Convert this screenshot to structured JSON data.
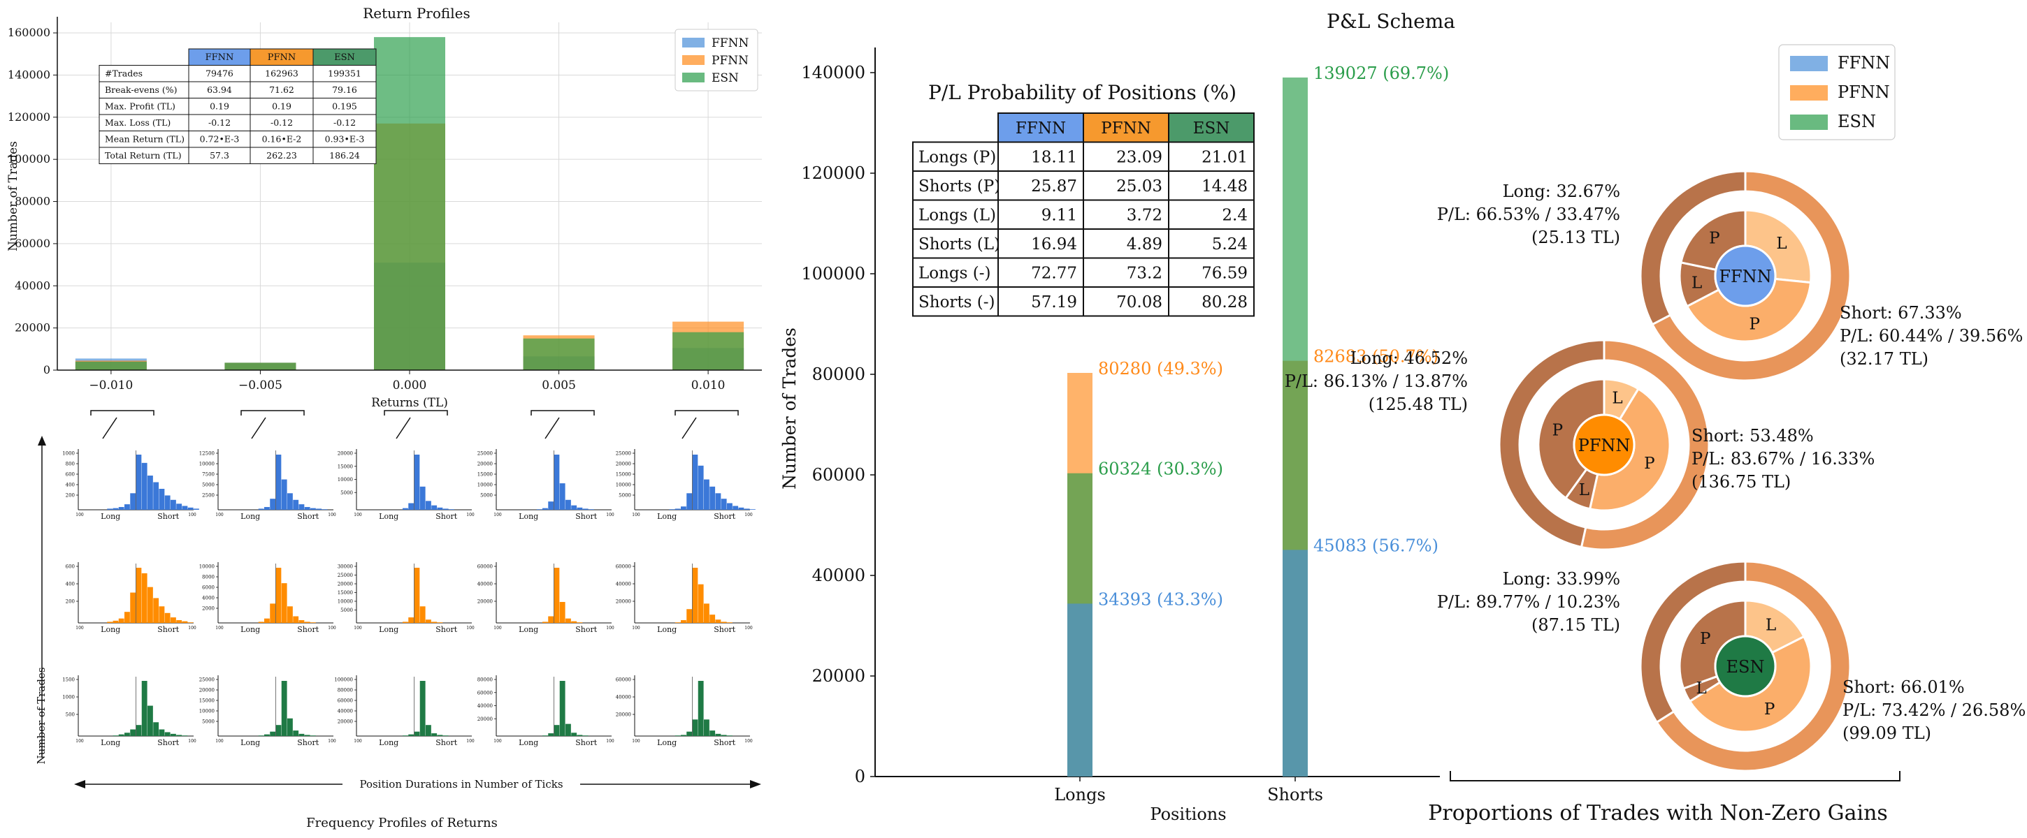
{
  "colors": {
    "ffnn": "#4a8fd9",
    "pfnn": "#ff8a1a",
    "esn": "#2a9d4a",
    "ffnn_cell": "#6d9eeb",
    "pfnn_cell": "#f6992e",
    "esn_cell": "#4c9a6a",
    "ffnn_dark": "#3b78d8",
    "pfnn_dark": "#ff8c00",
    "esn_dark": "#1f7a45",
    "long_pie": "#b8734a",
    "short_pie": "#e8955a",
    "inner_L": "#fdc48a",
    "inner_P": "#fbae6a"
  },
  "left": {
    "title": "Return Profiles",
    "ylabel": "Number of Trades",
    "xlabel": "Returns (TL)",
    "legend": [
      "FFNN",
      "PFNN",
      "ESN"
    ],
    "stats_table": {
      "headers": [
        "FFNN",
        "PFNN",
        "ESN"
      ],
      "rows": [
        {
          "label": "#Trades",
          "values": [
            "79476",
            "162963",
            "199351"
          ]
        },
        {
          "label": "Break-evens (%)",
          "values": [
            "63.94",
            "71.62",
            "79.16"
          ]
        },
        {
          "label": "Max. Profit (TL)",
          "values": [
            "0.19",
            "0.19",
            "0.195"
          ]
        },
        {
          "label": "Max. Loss (TL)",
          "values": [
            "-0.12",
            "-0.12",
            "-0.12"
          ]
        },
        {
          "label": "Mean Return (TL)",
          "values": [
            "0.72•E-3",
            "0.16•E-2",
            "0.93•E-3"
          ]
        },
        {
          "label": "Total Return (TL)",
          "values": [
            "57.3",
            "262.23",
            "186.24"
          ]
        }
      ]
    },
    "freq_title": "Frequency Profiles of Returns",
    "freq_ylabel": "Number of Trades",
    "freq_xlabel": "Position Durations in Number of Ticks",
    "small_long": "Long",
    "small_short": "Short",
    "small_tick": "100",
    "small_yticks": [
      [
        "1000",
        "800",
        "600",
        "400",
        "200"
      ],
      [
        "12500",
        "10000",
        "7500",
        "5000",
        "2500"
      ],
      [
        "20000",
        "15000",
        "10000",
        "5000"
      ],
      [
        "25000",
        "20000",
        "15000",
        "10000",
        "5000"
      ],
      [
        "25000",
        "20000",
        "15000",
        "10000",
        "5000"
      ],
      [
        "600",
        "400",
        "200"
      ],
      [
        "10000",
        "8000",
        "6000",
        "4000",
        "2000"
      ],
      [
        "30000",
        "25000",
        "20000",
        "15000",
        "10000",
        "5000"
      ],
      [
        "60000",
        "40000",
        "20000"
      ],
      [
        "60000",
        "40000",
        "20000"
      ],
      [
        "1500",
        "1000",
        "500"
      ],
      [
        "25000",
        "20000",
        "15000",
        "10000",
        "5000"
      ],
      [
        "100000",
        "80000",
        "60000",
        "40000",
        "20000"
      ],
      [
        "80000",
        "60000",
        "40000",
        "20000"
      ],
      [
        "60000",
        "40000",
        "20000"
      ]
    ]
  },
  "right": {
    "title": "P&L Schema",
    "ylabel": "Number of Trades",
    "xlabel": "Positions",
    "legend": [
      "FFNN",
      "PFNN",
      "ESN"
    ],
    "table_title": "P/L Probability of Positions (%)",
    "table_headers": [
      "FFNN",
      "PFNN",
      "ESN"
    ],
    "table_rows": [
      {
        "label": "Longs (P)",
        "values": [
          "18.11",
          "23.09",
          "21.01"
        ]
      },
      {
        "label": "Shorts (P)",
        "values": [
          "25.87",
          "25.03",
          "14.48"
        ]
      },
      {
        "label": "Longs (L)",
        "values": [
          "9.11",
          "3.72",
          "2.4"
        ]
      },
      {
        "label": "Shorts (L)",
        "values": [
          "16.94",
          "4.89",
          "5.24"
        ]
      },
      {
        "label": "Longs (-)",
        "values": [
          "72.77",
          "73.2",
          "76.59"
        ]
      },
      {
        "label": "Shorts (-)",
        "values": [
          "57.19",
          "70.08",
          "80.28"
        ]
      }
    ],
    "bar_labels": {
      "longs_pfnn": "80280 (49.3%)",
      "longs_esn": "60324 (30.3%)",
      "longs_ffnn": "34393 (43.3%)",
      "shorts_esn": "139027 (69.7%)",
      "shorts_pfnn": "82683 (50.7%)",
      "shorts_ffnn": "45083 (56.7%)"
    },
    "pies_title": "Proportions of Trades with Non-Zero Gains",
    "pies": [
      {
        "name": "FFNN",
        "long_label": "Long: 32.67%",
        "long_pl": "P/L: 66.53% / 33.47%",
        "long_tl": "(25.13 TL)",
        "short_label": "Short: 67.33%",
        "short_pl": "P/L: 60.44% / 39.56%",
        "short_tl": "(32.17 TL)"
      },
      {
        "name": "PFNN",
        "long_label": "Long: 46.52%",
        "long_pl": "P/L: 86.13% / 13.87%",
        "long_tl": "(125.48 TL)",
        "short_label": "Short: 53.48%",
        "short_pl": "P/L: 83.67% / 16.33%",
        "short_tl": "(136.75 TL)"
      },
      {
        "name": "ESN",
        "long_label": "Long: 33.99%",
        "long_pl": "P/L: 89.77% / 10.23%",
        "long_tl": "(87.15 TL)",
        "short_label": "Short: 66.01%",
        "short_pl": "P/L: 73.42% / 26.58%",
        "short_tl": "(99.09 TL)"
      }
    ],
    "pie_letters": {
      "L": "L",
      "P": "P"
    }
  },
  "chart_data": [
    {
      "type": "bar",
      "title": "Return Profiles",
      "xlabel": "Returns (TL)",
      "ylabel": "Number of Trades",
      "categories": [
        "-0.010",
        "-0.005",
        "0.000",
        "0.005",
        "0.010"
      ],
      "category_values": [
        -0.01,
        -0.005,
        0.0,
        0.005,
        0.01
      ],
      "ylim": [
        0,
        165000
      ],
      "yticks": [
        0,
        20000,
        40000,
        60000,
        80000,
        100000,
        120000,
        140000,
        160000
      ],
      "series": [
        {
          "name": "FFNN",
          "values": [
            5500,
            3500,
            51000,
            6500,
            10500
          ]
        },
        {
          "name": "PFNN",
          "values": [
            4500,
            3500,
            117000,
            16500,
            23000
          ]
        },
        {
          "name": "ESN",
          "values": [
            4000,
            3500,
            158000,
            15000,
            18000
          ]
        }
      ],
      "legend": "top-right",
      "grid": true
    },
    {
      "type": "bar",
      "title": "P&L Schema",
      "xlabel": "Positions",
      "ylabel": "Number of Trades",
      "categories": [
        "Longs",
        "Shorts"
      ],
      "ylim": [
        0,
        145000
      ],
      "yticks": [
        0,
        20000,
        40000,
        60000,
        80000,
        100000,
        120000,
        140000
      ],
      "series": [
        {
          "name": "FFNN",
          "values": [
            34393,
            45083
          ]
        },
        {
          "name": "PFNN",
          "values": [
            80280,
            82683
          ]
        },
        {
          "name": "ESN",
          "values": [
            60324,
            139027
          ]
        }
      ],
      "legend": "top-right"
    },
    {
      "type": "pie",
      "title": "Proportions of Trades with Non-Zero Gains",
      "series": [
        {
          "name": "FFNN",
          "long": 32.67,
          "short": 67.33,
          "long_profit": 66.53,
          "long_loss": 33.47,
          "short_profit": 60.44,
          "short_loss": 39.56
        },
        {
          "name": "PFNN",
          "long": 46.52,
          "short": 53.48,
          "long_profit": 86.13,
          "long_loss": 13.87,
          "short_profit": 83.67,
          "short_loss": 16.33
        },
        {
          "name": "ESN",
          "long": 33.99,
          "short": 66.01,
          "long_profit": 89.77,
          "long_loss": 10.23,
          "short_profit": 73.42,
          "short_loss": 26.58
        }
      ]
    }
  ]
}
